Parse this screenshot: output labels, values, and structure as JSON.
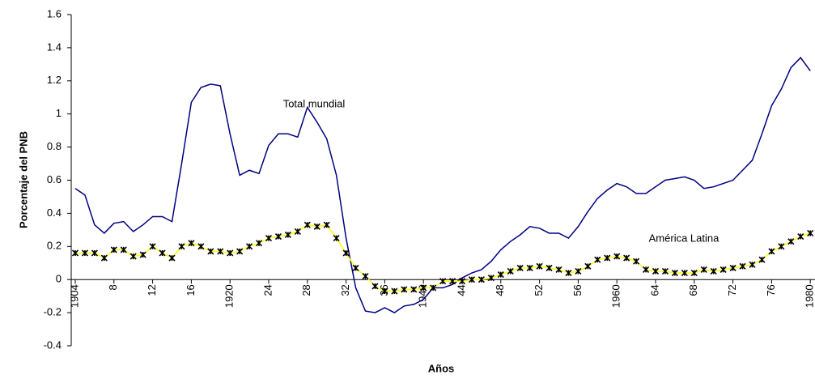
{
  "chart_data": {
    "type": "line",
    "x_label": "Años",
    "y_label": "Porcentaje del PNB",
    "categories": [
      "1904",
      null,
      null,
      null,
      "8",
      null,
      null,
      null,
      "12",
      null,
      null,
      null,
      "16",
      null,
      null,
      null,
      "1920",
      null,
      null,
      null,
      "24",
      null,
      null,
      null,
      "28",
      null,
      null,
      null,
      "32",
      null,
      null,
      null,
      "36",
      null,
      null,
      null,
      "1940",
      null,
      null,
      null,
      "44",
      null,
      null,
      null,
      "48",
      null,
      null,
      null,
      "52",
      null,
      null,
      null,
      "56",
      null,
      null,
      null,
      "1960",
      null,
      null,
      null,
      "64",
      null,
      null,
      null,
      "68",
      null,
      null,
      null,
      "72",
      null,
      null,
      null,
      "76",
      null,
      null,
      null,
      "1980"
    ],
    "series": [
      {
        "name": "Total mundial",
        "color": "#000080",
        "marker": false,
        "values": [
          0.55,
          0.51,
          0.33,
          0.28,
          0.34,
          0.35,
          0.29,
          0.33,
          0.38,
          0.38,
          0.35,
          0.7,
          1.07,
          1.16,
          1.18,
          1.17,
          0.88,
          0.63,
          0.66,
          0.64,
          0.81,
          0.88,
          0.88,
          0.86,
          1.04,
          0.95,
          0.85,
          0.63,
          0.25,
          -0.05,
          -0.19,
          -0.2,
          -0.17,
          -0.2,
          -0.16,
          -0.15,
          -0.12,
          -0.05,
          -0.05,
          -0.03,
          0.01,
          0.04,
          0.06,
          0.11,
          0.18,
          0.23,
          0.27,
          0.32,
          0.31,
          0.28,
          0.28,
          0.25,
          0.32,
          0.41,
          0.49,
          0.54,
          0.58,
          0.56,
          0.52,
          0.52,
          0.56,
          0.6,
          0.61,
          0.62,
          0.6,
          0.55,
          0.56,
          0.58,
          0.6,
          0.66,
          0.72,
          0.88,
          1.05,
          1.15,
          1.28,
          1.34,
          1.26
        ]
      },
      {
        "name": "América Latina",
        "color": "#ffff00",
        "marker": true,
        "values": [
          0.16,
          0.16,
          0.16,
          0.13,
          0.18,
          0.18,
          0.14,
          0.15,
          0.2,
          0.16,
          0.13,
          0.2,
          0.22,
          0.2,
          0.17,
          0.17,
          0.16,
          0.17,
          0.2,
          0.22,
          0.25,
          0.26,
          0.27,
          0.29,
          0.33,
          0.32,
          0.33,
          0.25,
          0.16,
          0.07,
          0.02,
          -0.04,
          -0.07,
          -0.07,
          -0.06,
          -0.06,
          -0.05,
          -0.05,
          -0.01,
          -0.01,
          -0.01,
          0,
          0,
          0.01,
          0.03,
          0.05,
          0.07,
          0.07,
          0.08,
          0.07,
          0.06,
          0.04,
          0.05,
          0.08,
          0.12,
          0.13,
          0.14,
          0.13,
          0.11,
          0.06,
          0.05,
          0.05,
          0.04,
          0.04,
          0.04,
          0.06,
          0.05,
          0.06,
          0.07,
          0.08,
          0.09,
          0.12,
          0.17,
          0.2,
          0.23,
          0.26,
          0.28
        ]
      }
    ],
    "ylim": [
      -0.4,
      1.6
    ],
    "yticks": [
      -0.4,
      -0.2,
      0,
      0.2,
      0.4,
      0.6,
      0.8,
      1,
      1.2,
      1.4,
      1.6
    ],
    "grid": false
  }
}
